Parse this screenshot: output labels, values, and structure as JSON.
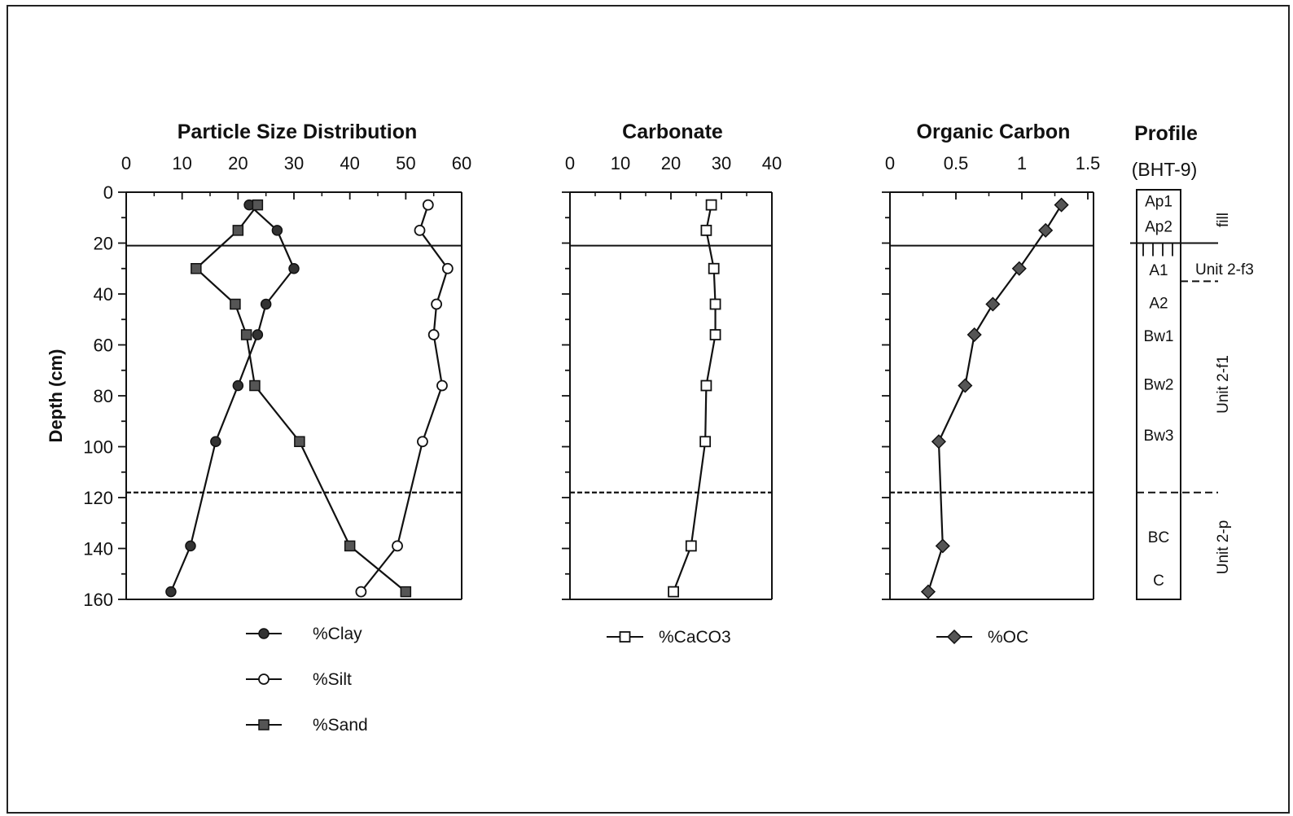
{
  "chart_data": [
    {
      "type": "line",
      "title": "Particle Size Distribution",
      "ylabel": "Depth (cm)",
      "xlim": [
        0,
        60
      ],
      "ylim": [
        0,
        160
      ],
      "y_inverted": true,
      "xticks": [
        "0",
        "10",
        "20",
        "30",
        "40",
        "50",
        "60"
      ],
      "yticks": [
        "0",
        "20",
        "40",
        "60",
        "80",
        "100",
        "120",
        "140",
        "160"
      ],
      "grid": false,
      "legend_position": "bottom",
      "series": [
        {
          "name": "%Clay",
          "marker": "filled-circle",
          "points": [
            [
              22,
              5
            ],
            [
              27,
              15
            ],
            [
              30,
              30
            ],
            [
              25,
              44
            ],
            [
              23.5,
              56
            ],
            [
              20,
              76
            ],
            [
              16,
              98
            ],
            [
              11.5,
              139
            ],
            [
              8,
              157
            ]
          ]
        },
        {
          "name": "%Silt",
          "marker": "open-circle",
          "points": [
            [
              54,
              5
            ],
            [
              52.5,
              15
            ],
            [
              57.5,
              30
            ],
            [
              55.5,
              44
            ],
            [
              55,
              56
            ],
            [
              56.5,
              76
            ],
            [
              53,
              98
            ],
            [
              48.5,
              139
            ],
            [
              42,
              157
            ]
          ]
        },
        {
          "name": "%Sand",
          "marker": "filled-square",
          "points": [
            [
              23.5,
              5
            ],
            [
              20,
              15
            ],
            [
              12.5,
              30
            ],
            [
              19.5,
              44
            ],
            [
              21.5,
              56
            ],
            [
              23,
              76
            ],
            [
              31,
              98
            ],
            [
              40,
              139
            ],
            [
              50,
              157
            ]
          ]
        }
      ],
      "reference_lines": [
        {
          "depth": 21,
          "style": "solid"
        },
        {
          "depth": 118,
          "style": "dashed"
        }
      ]
    },
    {
      "type": "line",
      "title": "Carbonate",
      "xlim": [
        0,
        40
      ],
      "ylim": [
        0,
        160
      ],
      "y_inverted": true,
      "xticks": [
        "0",
        "10",
        "20",
        "30",
        "40"
      ],
      "grid": false,
      "legend_position": "bottom",
      "series": [
        {
          "name": "%CaCO3",
          "marker": "open-square",
          "points": [
            [
              28,
              5
            ],
            [
              27,
              15
            ],
            [
              28.5,
              30
            ],
            [
              28.8,
              44
            ],
            [
              28.8,
              56
            ],
            [
              27,
              76
            ],
            [
              26.8,
              98
            ],
            [
              24,
              139
            ],
            [
              20.5,
              157
            ]
          ]
        }
      ],
      "reference_lines": [
        {
          "depth": 21,
          "style": "solid"
        },
        {
          "depth": 118,
          "style": "dashed"
        }
      ]
    },
    {
      "type": "line",
      "title": "Organic Carbon",
      "xlim": [
        0,
        1.5
      ],
      "ylim": [
        0,
        160
      ],
      "y_inverted": true,
      "xticks": [
        "0",
        "0.5",
        "1",
        "1.5"
      ],
      "grid": false,
      "legend_position": "bottom",
      "series": [
        {
          "name": "%OC",
          "marker": "filled-diamond",
          "points": [
            [
              1.3,
              5
            ],
            [
              1.18,
              15
            ],
            [
              0.98,
              30
            ],
            [
              0.78,
              44
            ],
            [
              0.64,
              56
            ],
            [
              0.57,
              76
            ],
            [
              0.37,
              98
            ],
            [
              0.4,
              139
            ],
            [
              0.29,
              157
            ]
          ]
        }
      ],
      "reference_lines": [
        {
          "depth": 21,
          "style": "solid"
        },
        {
          "depth": 118,
          "style": "dashed"
        }
      ]
    }
  ],
  "profile": {
    "title": "Profile",
    "subtitle": "(BHT-9)",
    "horizons": [
      {
        "label": "Ap1",
        "depth": 3
      },
      {
        "label": "Ap2",
        "depth": 13
      },
      {
        "label": "A1",
        "depth": 30
      },
      {
        "label": "A2",
        "depth": 43
      },
      {
        "label": "Bw1",
        "depth": 56
      },
      {
        "label": "Bw2",
        "depth": 75
      },
      {
        "label": "Bw3",
        "depth": 95
      },
      {
        "label": "BC",
        "depth": 135
      },
      {
        "label": "C",
        "depth": 152
      }
    ],
    "units": [
      {
        "label": "fill",
        "top": 0,
        "bottom": 20
      },
      {
        "label": "Unit 2-f3",
        "top": 20,
        "bottom": 35
      },
      {
        "label": "Unit 2-f1",
        "top": 35,
        "bottom": 118
      },
      {
        "label": "Unit 2-p",
        "top": 118,
        "bottom": 160
      }
    ],
    "boundaries": [
      {
        "depth": 20,
        "style": "solid"
      },
      {
        "depth": 35,
        "style": "dashed"
      },
      {
        "depth": 118,
        "style": "dashed"
      }
    ]
  }
}
